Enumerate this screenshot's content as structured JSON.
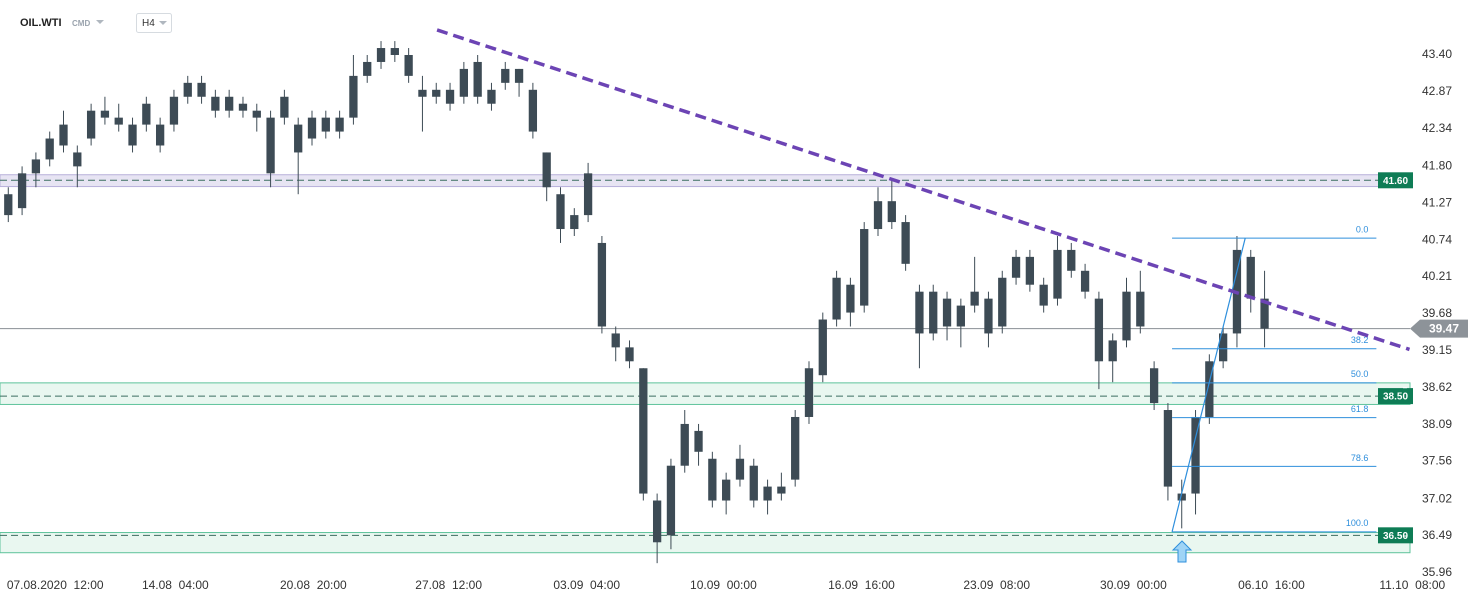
{
  "header": {
    "symbol": "OIL.WTI",
    "market": "CMD",
    "interval": "H4"
  },
  "chart_data": {
    "type": "candlestick",
    "color": "#3d4b55",
    "candles": [
      [
        41.4,
        41.5,
        41.0,
        41.1
      ],
      [
        41.2,
        41.8,
        41.1,
        41.7
      ],
      [
        41.7,
        42.0,
        41.5,
        41.9
      ],
      [
        41.9,
        42.3,
        41.8,
        42.2
      ],
      [
        42.1,
        42.6,
        42.0,
        42.4
      ],
      [
        42.0,
        42.1,
        41.5,
        41.8
      ],
      [
        42.2,
        42.7,
        42.1,
        42.6
      ],
      [
        42.6,
        42.8,
        42.4,
        42.5
      ],
      [
        42.5,
        42.7,
        42.3,
        42.4
      ],
      [
        42.4,
        42.5,
        42.0,
        42.1
      ],
      [
        42.4,
        42.8,
        42.3,
        42.7
      ],
      [
        42.4,
        42.5,
        42.0,
        42.1
      ],
      [
        42.4,
        42.9,
        42.3,
        42.8
      ],
      [
        42.8,
        43.1,
        42.7,
        43.0
      ],
      [
        43.0,
        43.1,
        42.7,
        42.8
      ],
      [
        42.8,
        42.9,
        42.5,
        42.6
      ],
      [
        42.6,
        42.9,
        42.5,
        42.8
      ],
      [
        42.7,
        42.8,
        42.5,
        42.6
      ],
      [
        42.5,
        42.7,
        42.3,
        42.6
      ],
      [
        42.5,
        42.6,
        41.5,
        41.7
      ],
      [
        42.5,
        42.9,
        42.4,
        42.8
      ],
      [
        42.4,
        42.5,
        41.4,
        42.0
      ],
      [
        42.2,
        42.6,
        42.1,
        42.5
      ],
      [
        42.3,
        42.6,
        42.2,
        42.5
      ],
      [
        42.5,
        42.6,
        42.2,
        42.3
      ],
      [
        42.5,
        43.4,
        42.4,
        43.1
      ],
      [
        43.1,
        43.4,
        43.0,
        43.3
      ],
      [
        43.3,
        43.6,
        43.2,
        43.5
      ],
      [
        43.5,
        43.6,
        43.3,
        43.4
      ],
      [
        43.4,
        43.5,
        43.0,
        43.1
      ],
      [
        42.9,
        43.1,
        42.3,
        42.8
      ],
      [
        42.8,
        43.0,
        42.7,
        42.9
      ],
      [
        42.9,
        43.0,
        42.6,
        42.7
      ],
      [
        42.8,
        43.3,
        42.7,
        43.2
      ],
      [
        43.3,
        43.4,
        42.7,
        42.8
      ],
      [
        42.7,
        43.0,
        42.6,
        42.9
      ],
      [
        43.0,
        43.3,
        42.9,
        43.2
      ],
      [
        43.2,
        43.2,
        42.8,
        43.0
      ],
      [
        42.9,
        43.0,
        42.2,
        42.3
      ],
      [
        42.0,
        42.0,
        41.3,
        41.5
      ],
      [
        41.4,
        41.5,
        40.7,
        40.9
      ],
      [
        40.9,
        41.2,
        40.8,
        41.1
      ],
      [
        41.1,
        41.85,
        41.0,
        41.7
      ],
      [
        40.7,
        40.8,
        39.4,
        39.5
      ],
      [
        39.4,
        39.5,
        39.0,
        39.2
      ],
      [
        39.2,
        39.3,
        38.9,
        39.0
      ],
      [
        38.9,
        38.9,
        37.0,
        37.1
      ],
      [
        37.0,
        37.1,
        36.1,
        36.4
      ],
      [
        36.5,
        37.6,
        36.3,
        37.5
      ],
      [
        37.5,
        38.3,
        37.4,
        38.1
      ],
      [
        38.0,
        38.1,
        37.5,
        37.7
      ],
      [
        37.6,
        37.7,
        36.9,
        37.0
      ],
      [
        37.0,
        37.4,
        36.8,
        37.3
      ],
      [
        37.3,
        37.8,
        37.2,
        37.6
      ],
      [
        37.5,
        37.6,
        36.9,
        37.0
      ],
      [
        37.0,
        37.3,
        36.8,
        37.2
      ],
      [
        37.1,
        37.4,
        37.0,
        37.2
      ],
      [
        37.3,
        38.3,
        37.2,
        38.2
      ],
      [
        38.2,
        39.0,
        38.1,
        38.9
      ],
      [
        38.8,
        39.7,
        38.7,
        39.6
      ],
      [
        39.6,
        40.3,
        39.5,
        40.2
      ],
      [
        40.1,
        40.2,
        39.5,
        39.7
      ],
      [
        39.8,
        41.0,
        39.7,
        40.9
      ],
      [
        40.9,
        41.5,
        40.8,
        41.3
      ],
      [
        41.3,
        41.6,
        40.9,
        41.0
      ],
      [
        41.0,
        41.1,
        40.3,
        40.4
      ],
      [
        40.0,
        40.1,
        38.9,
        39.4
      ],
      [
        39.4,
        40.1,
        39.3,
        40.0
      ],
      [
        39.9,
        40.0,
        39.3,
        39.5
      ],
      [
        39.5,
        39.9,
        39.2,
        39.8
      ],
      [
        39.8,
        40.5,
        39.7,
        40.0
      ],
      [
        39.9,
        40.0,
        39.2,
        39.4
      ],
      [
        39.5,
        40.3,
        39.4,
        40.2
      ],
      [
        40.2,
        40.6,
        40.1,
        40.5
      ],
      [
        40.5,
        40.6,
        40.0,
        40.1
      ],
      [
        40.1,
        40.2,
        39.7,
        39.8
      ],
      [
        39.9,
        40.8,
        39.8,
        40.6
      ],
      [
        40.6,
        40.7,
        40.2,
        40.3
      ],
      [
        40.3,
        40.4,
        39.9,
        40.0
      ],
      [
        39.9,
        40.0,
        38.6,
        39.0
      ],
      [
        39.0,
        39.4,
        38.7,
        39.3
      ],
      [
        39.3,
        40.2,
        39.2,
        40.0
      ],
      [
        40.0,
        40.3,
        39.4,
        39.5
      ],
      [
        38.9,
        39.0,
        38.3,
        38.4
      ],
      [
        38.3,
        38.4,
        37.0,
        37.2
      ],
      [
        37.1,
        37.3,
        36.6,
        37.0
      ],
      [
        37.1,
        38.3,
        36.8,
        38.2
      ],
      [
        38.2,
        39.1,
        38.1,
        39.0
      ],
      [
        39.0,
        39.5,
        38.9,
        39.4
      ],
      [
        39.4,
        40.8,
        39.2,
        40.6
      ],
      [
        40.5,
        40.6,
        39.7,
        39.9
      ],
      [
        39.9,
        40.3,
        39.2,
        39.47
      ]
    ],
    "xlim": [
      -0.6,
      99
    ],
    "ylim": [
      35.93,
      44.19
    ],
    "yticks": [
      {
        "value": 43.4,
        "label": "43.40"
      },
      42.87,
      42.34,
      {
        "value": 41.8,
        "label": "41.80"
      },
      41.27,
      40.74,
      40.21,
      39.68,
      39.15,
      38.62,
      38.09,
      37.56,
      37.02,
      36.49,
      35.96
    ],
    "xticks": [
      {
        "value": 3.4,
        "label": "07.08.2020  12:00"
      },
      {
        "value": 12.1,
        "label": "14.08  04:00"
      },
      {
        "value": 22.1,
        "label": "20.08  20:00"
      },
      {
        "value": 31.9,
        "label": "27.08  12:00"
      },
      {
        "value": 41.9,
        "label": "03.09  04:00"
      },
      {
        "value": 51.8,
        "label": "10.09  00:00"
      },
      {
        "value": 61.8,
        "label": "16.09  16:00"
      },
      {
        "value": 71.6,
        "label": "23.09  08:00"
      },
      {
        "value": 81.5,
        "label": "30.09  00:00"
      },
      {
        "value": 91.5,
        "label": "06.10  16:00"
      },
      {
        "value": 101.7,
        "label": "11.10  08:00"
      }
    ],
    "price_levels": [
      {
        "value": 41.6,
        "label": "41.60",
        "zone": [
          41.51,
          41.68
        ],
        "fill": "#e7e4f3",
        "edge": "#b8b0da"
      },
      {
        "value": 38.5,
        "label": "38.50",
        "zone": [
          38.38,
          38.69
        ],
        "fill": "#e9f7f0",
        "edge": "#5ec39b"
      },
      {
        "value": 36.5,
        "label": "36.50",
        "zone": [
          36.25,
          36.54
        ],
        "fill": "#e9f7f0",
        "edge": "#5ec39b"
      }
    ],
    "last_price": 39.47,
    "trendline": {
      "x": [
        31.06,
        101.5
      ],
      "y": [
        43.76,
        39.17
      ],
      "color": "#6c44b4"
    },
    "impulse": {
      "x": [
        84.3,
        89.6
      ],
      "y": [
        36.55,
        40.77
      ],
      "color": "#2f8fdc"
    },
    "fibonacci": {
      "x": [
        84.3,
        99.1
      ],
      "color": "#2f8fdc",
      "levels": [
        {
          "value": 0,
          "label": "0.0",
          "price": 40.77
        },
        {
          "value": 38.2,
          "label": "38.2",
          "price": 39.18
        },
        {
          "value": 50,
          "label": "50.0",
          "price": 38.69
        },
        {
          "value": 61.8,
          "label": "61.8",
          "price": 38.19
        },
        {
          "value": 78.6,
          "label": "78.6",
          "price": 37.49
        },
        {
          "value": 100,
          "label": "100.0",
          "price": 36.55
        }
      ]
    }
  }
}
